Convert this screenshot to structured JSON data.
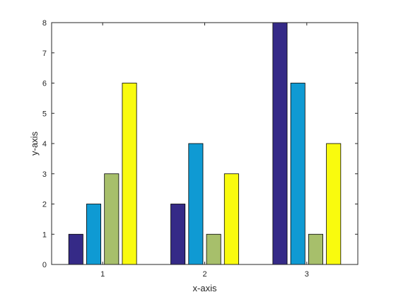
{
  "chart_data": {
    "type": "bar",
    "title": "",
    "xlabel": "x-axis",
    "ylabel": "y-axis",
    "categories": [
      "1",
      "2",
      "3"
    ],
    "series": [
      {
        "color": "#352a87",
        "values": [
          1,
          2,
          8
        ]
      },
      {
        "color": "#0f9ad3",
        "values": [
          2,
          4,
          6
        ]
      },
      {
        "color": "#a7bf6b",
        "values": [
          3,
          1,
          1
        ]
      },
      {
        "color": "#f9fb0e",
        "values": [
          6,
          3,
          4
        ]
      }
    ],
    "ylim": [
      0,
      8
    ],
    "yticks": [
      "0",
      "1",
      "2",
      "3",
      "4",
      "5",
      "6",
      "7",
      "8"
    ],
    "grid": false,
    "legend": "none"
  }
}
